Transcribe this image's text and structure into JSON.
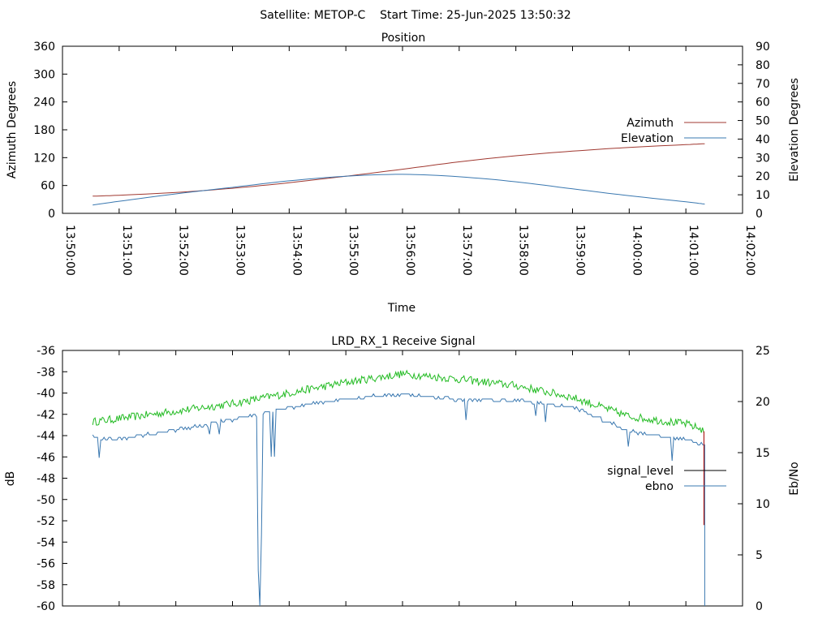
{
  "page_title": "Satellite: METOP-C    Start Time: 25-Jun-2025 13:50:32",
  "colors": {
    "azimuth": "#a03830",
    "elevation": "#3a78b0",
    "signal_level": "#000000",
    "signal_green": "#22bb22",
    "ebno": "#3a78b0",
    "signal_red": "#b02020"
  },
  "chart_data": [
    {
      "type": "line",
      "title": "Position",
      "xlabel": "Time",
      "ylabel": "Azimuth Degrees",
      "y2label": "Elevation Degrees",
      "ylim": [
        0,
        360
      ],
      "y2lim": [
        0,
        90
      ],
      "xlim": [
        "13:50:00",
        "14:02:00"
      ],
      "yticks": [
        "0",
        "60",
        "120",
        "180",
        "240",
        "300",
        "360"
      ],
      "y2ticks": [
        "0",
        "10",
        "20",
        "30",
        "40",
        "50",
        "60",
        "70",
        "80",
        "90"
      ],
      "xticks": [
        "13:50:00",
        "13:51:00",
        "13:52:00",
        "13:53:00",
        "13:54:00",
        "13:55:00",
        "13:56:00",
        "13:57:00",
        "13:58:00",
        "13:59:00",
        "14:00:00",
        "14:01:00",
        "14:02:00"
      ],
      "legend_position": "right",
      "series": [
        {
          "name": "Azimuth",
          "axis": "y1",
          "x": [
            "13:50:32",
            "13:51:00",
            "13:52:00",
            "13:53:00",
            "13:54:00",
            "13:55:00",
            "13:56:00",
            "13:57:00",
            "13:58:00",
            "13:59:00",
            "14:00:00",
            "14:01:00",
            "14:01:20"
          ],
          "y": [
            37,
            39,
            45,
            54,
            66,
            80,
            95,
            111,
            124,
            134,
            142,
            148,
            150
          ]
        },
        {
          "name": "Elevation",
          "axis": "y2",
          "x": [
            "13:50:32",
            "13:51:00",
            "13:52:00",
            "13:53:00",
            "13:54:00",
            "13:55:00",
            "13:56:00",
            "13:57:00",
            "13:58:00",
            "13:59:00",
            "14:00:00",
            "14:01:00",
            "14:01:20"
          ],
          "y": [
            4.5,
            6.5,
            10.5,
            14,
            17.5,
            20,
            21,
            19.7,
            17,
            13.2,
            9.5,
            6.2,
            5
          ]
        }
      ]
    },
    {
      "type": "line",
      "title": "LRD_RX_1 Receive Signal",
      "ylabel": "dB",
      "y2label": "Eb/No",
      "ylim": [
        -60,
        -36
      ],
      "y2lim": [
        0,
        25
      ],
      "yticks": [
        "-60",
        "-58",
        "-56",
        "-54",
        "-52",
        "-50",
        "-48",
        "-46",
        "-44",
        "-42",
        "-40",
        "-38",
        "-36"
      ],
      "y2ticks": [
        "0",
        "5",
        "10",
        "15",
        "20",
        "25"
      ],
      "xlim": [
        "13:50:00",
        "14:02:00"
      ],
      "legend_position": "right",
      "series": [
        {
          "name": "signal_level",
          "axis": "y1",
          "x": [
            "13:50:32",
            "13:51:00",
            "13:52:00",
            "13:53:00",
            "13:54:00",
            "13:55:00",
            "13:56:00",
            "13:57:00",
            "13:58:00",
            "13:59:00",
            "14:00:00",
            "14:01:00",
            "14:01:20"
          ],
          "y": [
            -42.7,
            -42.4,
            -41.7,
            -41.0,
            -40.0,
            -39.0,
            -38.2,
            -38.7,
            -39.3,
            -40.4,
            -42.2,
            -42.9,
            -43.5
          ]
        },
        {
          "name": "ebno",
          "axis": "y2",
          "x": [
            "13:50:32",
            "13:51:00",
            "13:52:00",
            "13:53:00",
            "13:54:00",
            "13:55:00",
            "13:56:00",
            "13:57:00",
            "13:58:00",
            "13:59:00",
            "14:00:00",
            "14:01:00",
            "14:01:20"
          ],
          "y": [
            16.5,
            16.3,
            17.2,
            18.2,
            19.4,
            20.3,
            20.7,
            20.2,
            20.1,
            19.5,
            17.1,
            16.3,
            15.8
          ]
        }
      ]
    }
  ]
}
